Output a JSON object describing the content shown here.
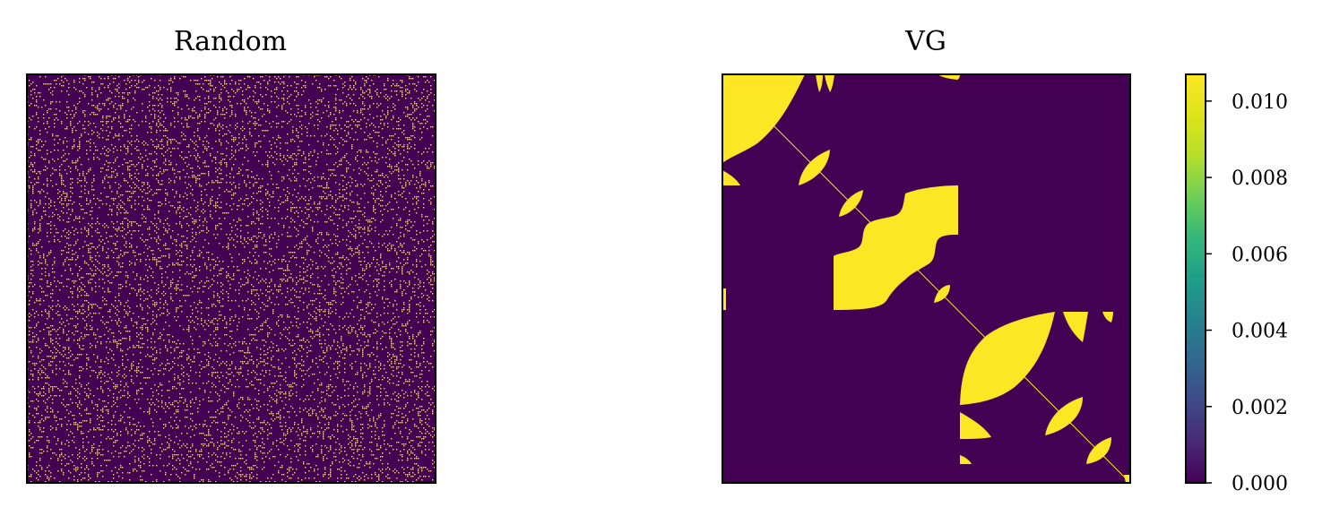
{
  "chart_data": [
    {
      "type": "heatmap",
      "title": "Random",
      "xlabel": "",
      "ylabel": "",
      "xticks": [],
      "yticks": [],
      "description_of_values": "sparse random binary matrix",
      "value_levels": [
        0.0,
        0.0107
      ],
      "density": 0.16,
      "colormap": "viridis"
    },
    {
      "type": "heatmap",
      "title": "VG",
      "xlabel": "",
      "ylabel": "",
      "xticks": [],
      "yticks": [],
      "value_levels": [
        0.0,
        0.0107
      ],
      "colormap": "viridis",
      "colorbar": {
        "range": [
          0.0,
          0.0107
        ],
        "ticks": [
          0.0,
          0.002,
          0.004,
          0.006,
          0.008,
          0.01
        ],
        "tick_labels": [
          "0.000",
          "0.002",
          "0.004",
          "0.006",
          "0.008",
          "0.010"
        ]
      }
    }
  ],
  "colors": {
    "low": "#440154",
    "high": "#fde725",
    "frame": "#000000"
  }
}
